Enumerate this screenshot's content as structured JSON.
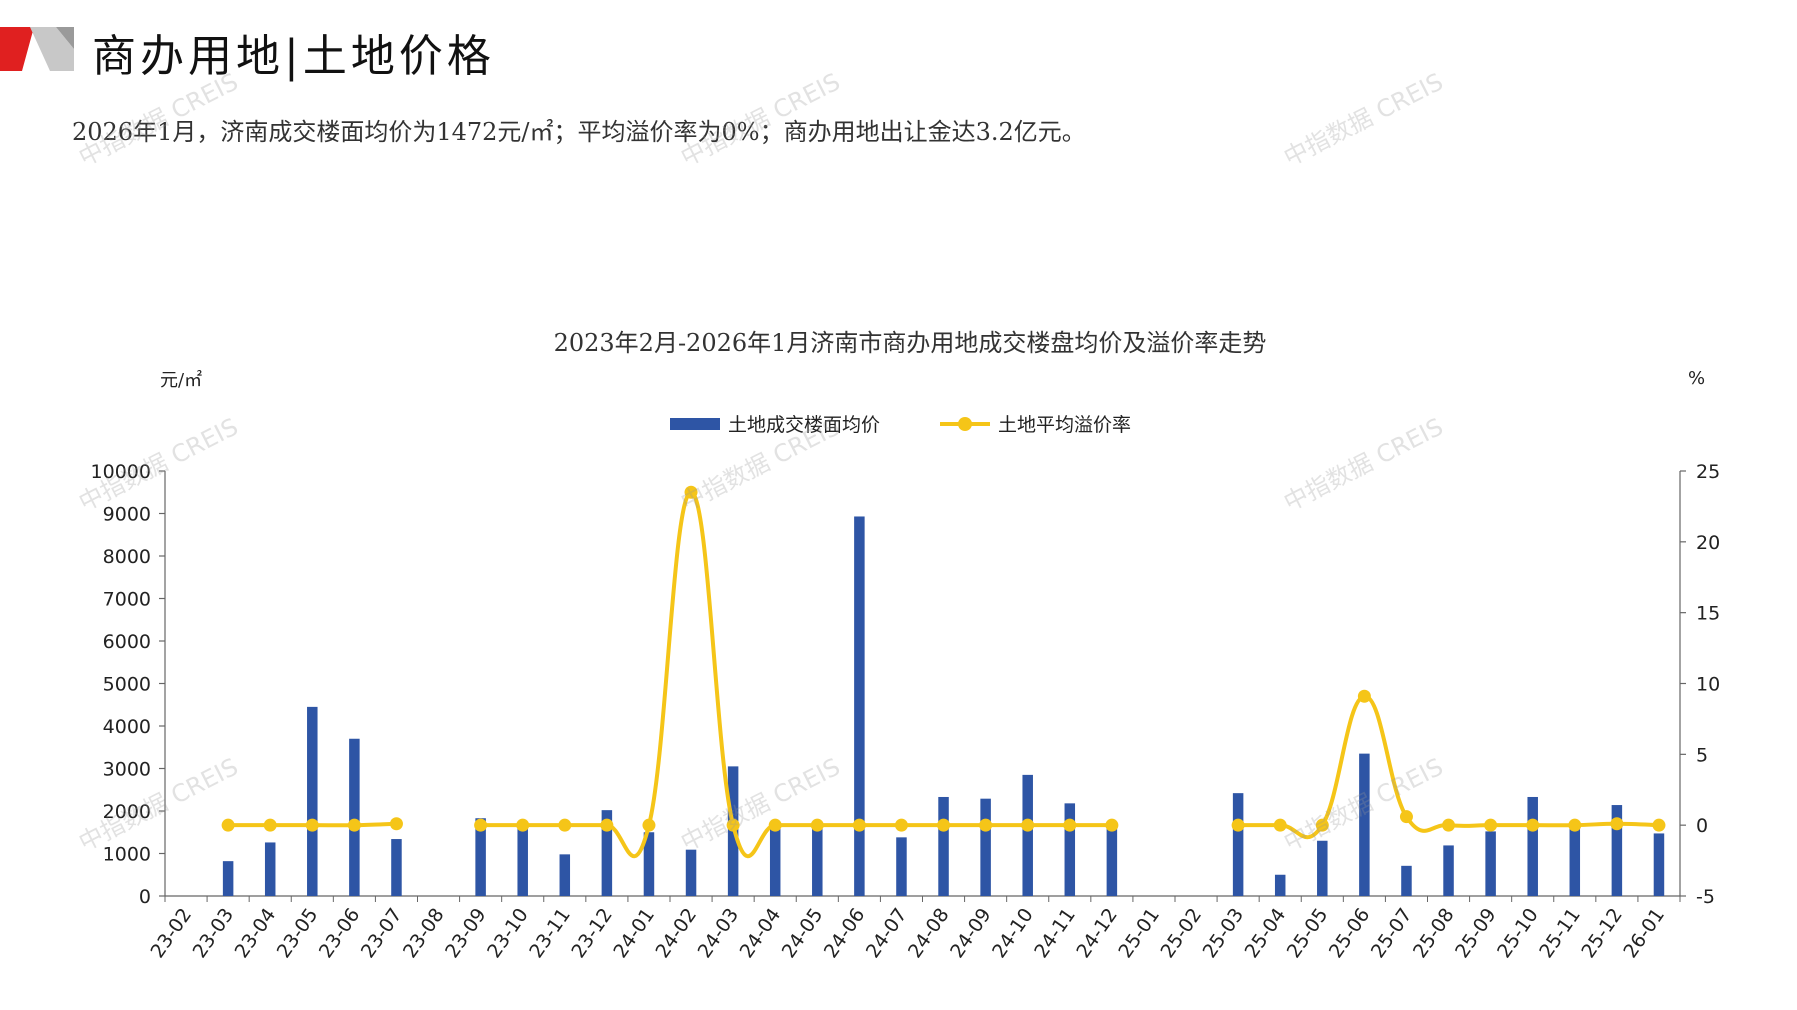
{
  "header": {
    "title": "商办用地|土地价格",
    "summary": "2026年1月，济南成交楼面均价为1472元/㎡；平均溢价率为0%；商办用地出让金达3.2亿元。"
  },
  "watermark_text": "中指数据 CREIS",
  "colors": {
    "bar": "#2E55A5",
    "line": "#F5C518",
    "accent": "#E02020"
  },
  "chart_data": {
    "type": "bar+line",
    "title": "2023年2月-2026年1月济南市商办用地成交楼盘均价及溢价率走势",
    "y_left_unit": "元/㎡",
    "y_right_unit": "%",
    "y_left_lim": [
      0,
      10000
    ],
    "y_left_ticks": [
      "0",
      "1000",
      "2000",
      "3000",
      "4000",
      "5000",
      "6000",
      "7000",
      "8000",
      "9000",
      "10000"
    ],
    "y_right_lim": [
      -5,
      25
    ],
    "y_right_ticks": [
      "-5",
      "0",
      "5",
      "10",
      "15",
      "20",
      "25"
    ],
    "grid": false,
    "legend_position": "top-center",
    "categories": [
      "23-02",
      "23-03",
      "23-04",
      "23-05",
      "23-06",
      "23-07",
      "23-08",
      "23-09",
      "23-10",
      "23-11",
      "23-12",
      "24-01",
      "24-02",
      "24-03",
      "24-04",
      "24-05",
      "24-06",
      "24-07",
      "24-08",
      "24-09",
      "24-10",
      "24-11",
      "24-12",
      "25-01",
      "25-02",
      "25-03",
      "25-04",
      "25-05",
      "25-06",
      "25-07",
      "25-08",
      "25-09",
      "25-10",
      "25-11",
      "25-12",
      "26-01"
    ],
    "series": [
      {
        "name": "土地成交楼面均价",
        "type": "bar",
        "axis": "left",
        "values": [
          null,
          820,
          1260,
          4450,
          3700,
          1340,
          null,
          1830,
          1650,
          980,
          2020,
          1500,
          1090,
          3050,
          1700,
          1700,
          8930,
          1380,
          2330,
          2290,
          2850,
          2180,
          1620,
          null,
          null,
          2420,
          500,
          1300,
          3350,
          710,
          1190,
          1520,
          2330,
          1600,
          2140,
          1472
        ]
      },
      {
        "name": "土地平均溢价率",
        "type": "line",
        "axis": "right",
        "values": [
          null,
          0,
          0,
          0,
          0,
          0.1,
          null,
          0,
          0,
          0,
          0,
          0,
          23.5,
          0,
          0,
          0,
          0,
          0,
          0,
          0,
          0,
          0,
          0,
          null,
          null,
          0,
          0,
          0,
          9.1,
          0.6,
          0,
          0,
          0,
          0,
          0.1,
          0
        ]
      }
    ]
  }
}
